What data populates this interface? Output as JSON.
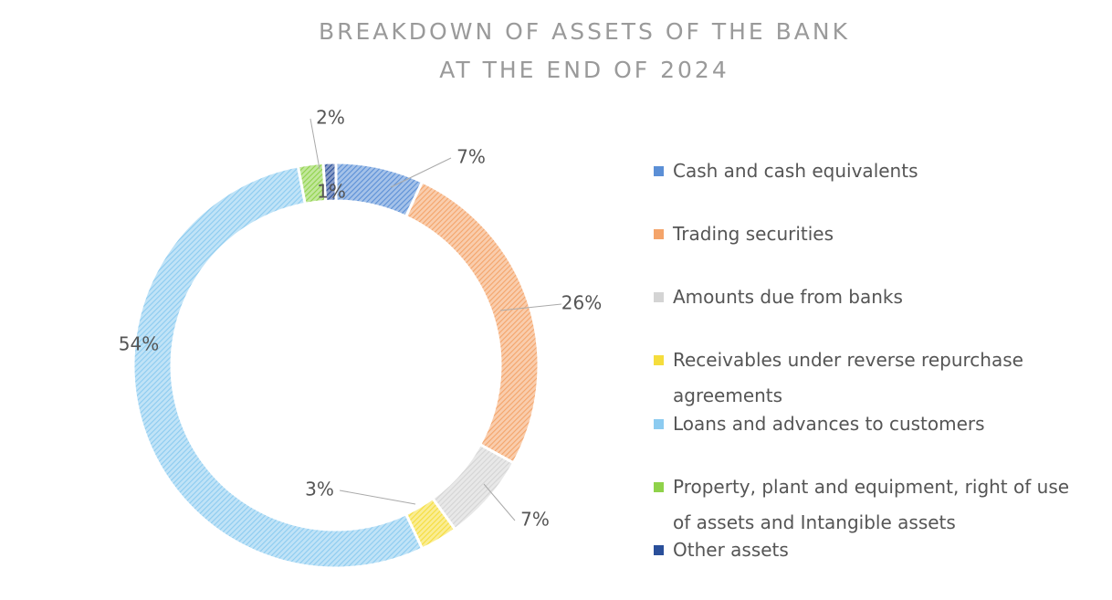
{
  "chart_data": {
    "type": "donut",
    "title": [
      "BREAKDOWN OF ASSETS OF THE BANK",
      "AT THE END OF 2024"
    ],
    "categories": [
      "Cash and cash equivalents",
      "Trading securities",
      "Amounts due from banks",
      "Receivables under reverse repurchase agreements",
      "Loans and advances to customers",
      "Property, plant and equipment, right of use of assets and Intangible assets",
      "Other assets"
    ],
    "values": [
      7,
      26,
      7,
      3,
      54,
      2,
      1
    ],
    "value_labels": [
      "7%",
      "26%",
      "7%",
      "3%",
      "54%",
      "2%",
      "1%"
    ],
    "colors": [
      "#5b8fd6",
      "#f4a46a",
      "#d4d4d4",
      "#f5dd3c",
      "#8ccbf0",
      "#8fd24a",
      "#2a4f9a"
    ],
    "legend": "right"
  }
}
